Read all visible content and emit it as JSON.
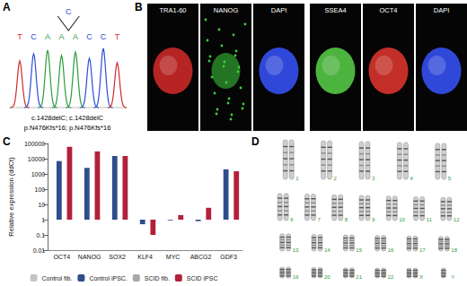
{
  "panels": {
    "A": {
      "label": "A",
      "bases": [
        "T",
        "C",
        "A",
        "A",
        "A",
        "C",
        "C",
        "T"
      ],
      "insertion": "C",
      "mutation": [
        "c.1428delC; c.1428delC",
        "p.N476Kfs*16; p.N476Kfs*16"
      ]
    },
    "B": {
      "label": "B",
      "stains": [
        "TRA1-60",
        "NANOG",
        "DAPI",
        "SSEA4",
        "OCT4",
        "DAPI"
      ]
    },
    "C": {
      "label": "C"
    },
    "D": {
      "label": "D",
      "chromosome_rows": [
        [
          "1",
          "2",
          "3",
          "4",
          "5"
        ],
        [
          "6",
          "7",
          "8",
          "9",
          "10",
          "11",
          "12"
        ],
        [
          "13",
          "14",
          "15",
          "16",
          "17",
          "18"
        ],
        [
          "19",
          "20",
          "21",
          "22",
          "X",
          "Y"
        ]
      ]
    }
  },
  "chart_data": {
    "type": "bar",
    "y_label": "Relative expression (ddCt)",
    "categories": [
      "OCT4",
      "NANOG",
      "SOX2",
      "KLF4",
      "MYC",
      "ABCG2",
      "GDF3"
    ],
    "series": [
      {
        "name": "Control fib.",
        "color": "#c4c4c4",
        "values": [
          1,
          1,
          1,
          1,
          1,
          1,
          1
        ]
      },
      {
        "name": "Control iPSC.",
        "color": "#2f4d8c",
        "values": [
          7000,
          2500,
          15000,
          0.5,
          0.9,
          0.8,
          2000
        ]
      },
      {
        "name": "SCID fib.",
        "color": "#a8a8a8",
        "values": [
          1,
          1,
          1,
          1,
          1,
          1,
          1
        ]
      },
      {
        "name": "SCID iPSC",
        "color": "#b3203c",
        "values": [
          60000,
          30000,
          15000,
          0.1,
          2,
          6,
          1500
        ]
      }
    ],
    "log": "y",
    "ylim": [
      0.01,
      100000
    ],
    "yticks": [
      0.01,
      0.1,
      1,
      10,
      100,
      1000,
      10000,
      100000
    ],
    "grid": false,
    "legend": "bottom"
  }
}
